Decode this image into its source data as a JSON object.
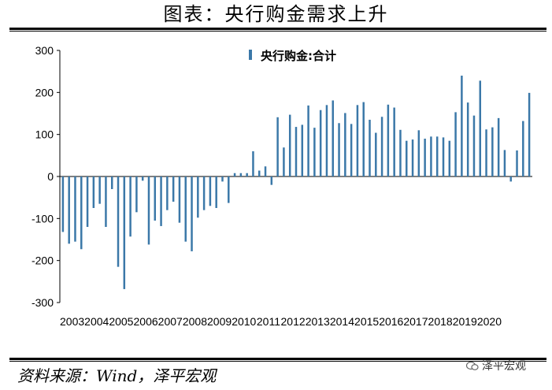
{
  "title": "图表：央行购金需求上升",
  "source": "资料来源：Wind，泽平宏观",
  "watermark": "泽平宏观",
  "chart_data": {
    "type": "bar",
    "series": [
      {
        "name": "央行购金:合计",
        "color": "#3b78a8",
        "values": [
          -132,
          -160,
          -155,
          -173,
          -120,
          -75,
          -65,
          -120,
          -30,
          -215,
          -268,
          -143,
          -85,
          -10,
          -162,
          -105,
          -118,
          -80,
          -60,
          -110,
          -155,
          -178,
          -98,
          -80,
          -70,
          -75,
          -12,
          -63,
          8,
          8,
          8,
          60,
          14,
          24,
          -20,
          141,
          69,
          147,
          118,
          123,
          169,
          116,
          158,
          170,
          181,
          127,
          151,
          125,
          170,
          177,
          135,
          104,
          142,
          171,
          164,
          111,
          85,
          88,
          110,
          90,
          95,
          95,
          93,
          85,
          153,
          240,
          176,
          145,
          228,
          112,
          117,
          139,
          63,
          -12,
          62,
          132,
          199
        ]
      }
    ],
    "x_tick_labels": [
      "2003",
      "2004",
      "2005",
      "2006",
      "2007",
      "2008",
      "2009",
      "2010",
      "2011",
      "2012",
      "2013",
      "2014",
      "2015",
      "2016",
      "2017",
      "2018",
      "2019",
      "2020"
    ],
    "y_tick_labels": [
      "300",
      "200",
      "100",
      "0",
      "-100",
      "-200",
      "-300"
    ],
    "ylim": [
      -300,
      300
    ],
    "legend_position": "top-center"
  }
}
